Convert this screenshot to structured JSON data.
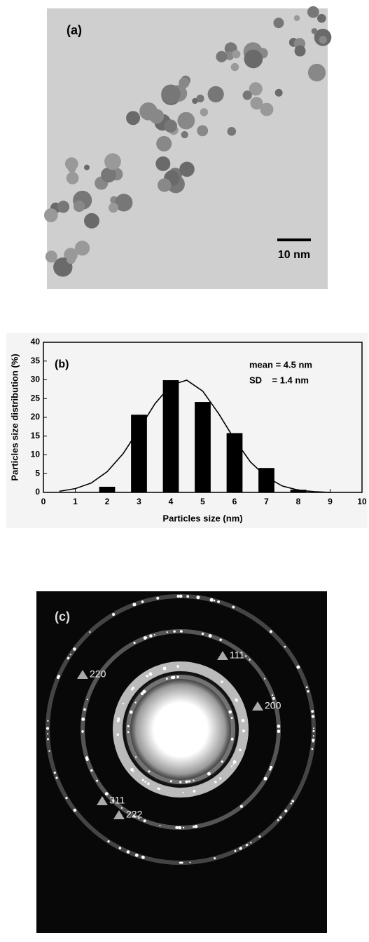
{
  "panel_a": {
    "label": "(a)",
    "scale_bar": "10 nm"
  },
  "chart_data": {
    "type": "bar",
    "annotation": "(b)",
    "mean_text": "mean = 4.5 nm",
    "sd_text": "SD    = 1.4 nm",
    "x_label": "Particles size (nm)",
    "y_label": "Particles size distribution (%)",
    "x": [
      2,
      3,
      4,
      5,
      6,
      7,
      8
    ],
    "values": [
      1.5,
      20.7,
      29.9,
      24.1,
      15.8,
      6.5,
      0.7
    ],
    "color": "#000000",
    "bar_width": 0.5,
    "fit": {
      "type": "line",
      "color": "#000000",
      "x": [
        0.5,
        1,
        1.5,
        2,
        2.5,
        3,
        3.5,
        4,
        4.5,
        5,
        5.5,
        6,
        6.5,
        7,
        7.5,
        8,
        8.5,
        9
      ],
      "values": [
        0.3,
        1.0,
        2.5,
        5.5,
        10.3,
        16.8,
        23.6,
        28.6,
        29.9,
        27.0,
        21.0,
        14.1,
        8.1,
        4.1,
        1.7,
        0.6,
        0.2,
        0
      ]
    },
    "xlim": [
      0,
      10
    ],
    "xticks": [
      0,
      1,
      2,
      3,
      4,
      5,
      6,
      7,
      8,
      9,
      10
    ],
    "ylim": [
      0,
      40
    ],
    "yticks": [
      0,
      5,
      10,
      15,
      20,
      25,
      30,
      35,
      40
    ]
  },
  "panel_c": {
    "label": "(c)",
    "reflections": [
      "111",
      "220",
      "200",
      "311",
      "222"
    ]
  }
}
